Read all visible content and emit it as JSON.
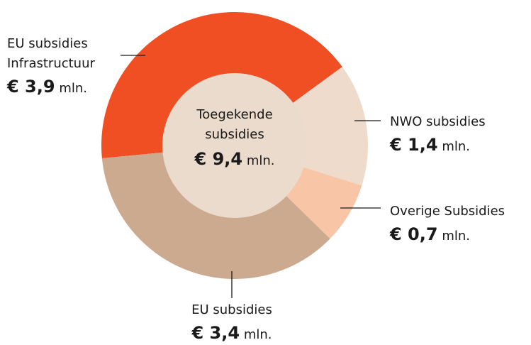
{
  "chart_data": {
    "type": "donut",
    "center_title": "Toegekende\nsubsidies",
    "center_value_label": "€ 9,4",
    "unit": "mln.",
    "categories": [
      "EU subsidies\nInfrastructuur",
      "NWO subsidies",
      "Overige Subsidies",
      "EU subsidies"
    ],
    "values": [
      3.9,
      1.4,
      0.7,
      3.4
    ],
    "value_labels": [
      "€ 3,9",
      "€ 1,4",
      "€ 0,7",
      "€ 3,4"
    ],
    "colors": [
      "#f04e23",
      "#efdbcc",
      "#f8c5a6",
      "#ccaa8f"
    ],
    "center_color": "#ebdbcc"
  }
}
